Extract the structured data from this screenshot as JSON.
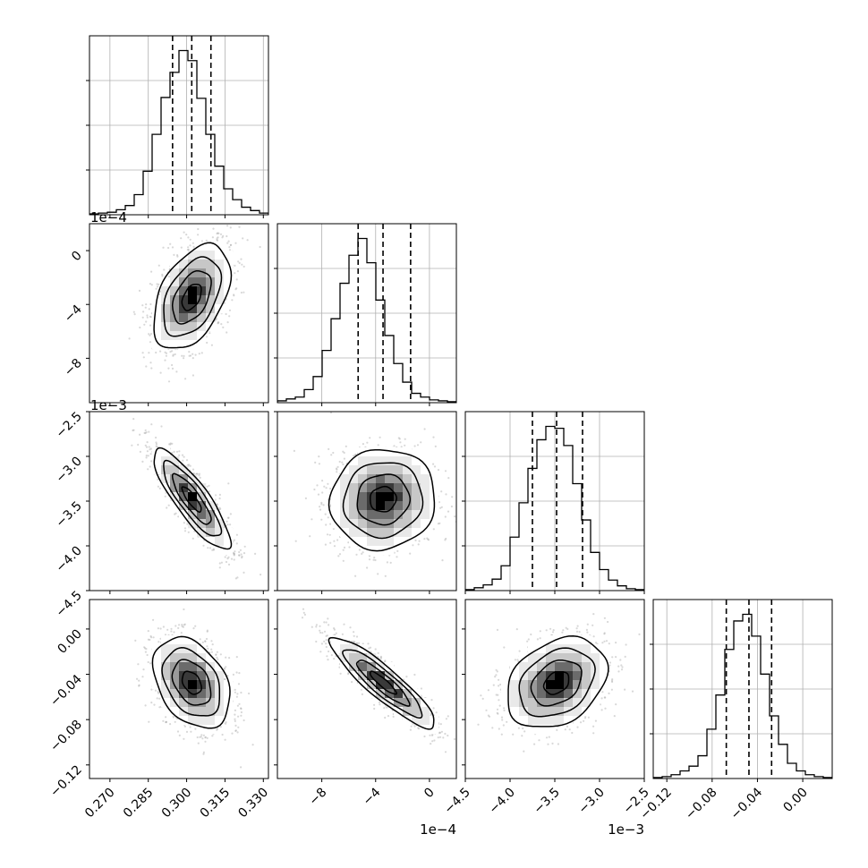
{
  "chart_data": {
    "type": "corner",
    "colors": {
      "line": "#000000",
      "grid": "#b0b0b0",
      "scatter": "#a9a9a9",
      "density": [
        "#ffffff",
        "#e9e9e9",
        "#c7c7c7",
        "#9a9a9a",
        "#6b6b6b",
        "#3a3a3a",
        "#000000"
      ]
    },
    "params": [
      {
        "range": [
          0.262,
          0.332
        ],
        "ticks": [
          0.27,
          0.285,
          0.3,
          0.315,
          0.33
        ],
        "tick_labels": [
          "0.270",
          "0.285",
          "0.300",
          "0.315",
          "0.330"
        ],
        "offset_label": "",
        "quantiles": [
          0.2945,
          0.302,
          0.3095
        ],
        "hist": [
          1,
          2,
          3,
          6,
          11,
          24,
          52,
          96,
          140,
          170,
          196,
          184,
          139,
          96,
          58,
          31,
          18,
          9,
          5,
          2
        ]
      },
      {
        "range": [
          -11.3,
          2.0
        ],
        "ticks": [
          -8,
          -4,
          0
        ],
        "tick_labels": [
          "−8",
          "−4",
          "0"
        ],
        "offset_label": "1e−4",
        "quantiles": [
          -5.3,
          -3.45,
          -1.4
        ],
        "hist": [
          2,
          4,
          6,
          14,
          28,
          56,
          90,
          128,
          158,
          176,
          150,
          110,
          72,
          42,
          22,
          10,
          6,
          3,
          2,
          1
        ]
      },
      {
        "range": [
          -4.5,
          -2.5
        ],
        "ticks": [
          -4.5,
          -4.0,
          -3.5,
          -3.0,
          -2.5
        ],
        "tick_labels": [
          "−4.5",
          "−4.0",
          "−3.5",
          "−3.0",
          "−2.5"
        ],
        "offset_label": "1e−3",
        "quantiles": [
          -3.75,
          -3.48,
          -3.19
        ],
        "hist": [
          1,
          3,
          6,
          12,
          26,
          56,
          92,
          128,
          158,
          172,
          170,
          152,
          112,
          74,
          40,
          22,
          11,
          5,
          2,
          1
        ]
      },
      {
        "range": [
          -0.132,
          0.026
        ],
        "ticks": [
          -0.12,
          -0.08,
          -0.04,
          0.0
        ],
        "tick_labels": [
          "−0.12",
          "−0.08",
          "−0.04",
          "0.00"
        ],
        "offset_label": "",
        "quantiles": [
          -0.0675,
          -0.0475,
          -0.0275
        ],
        "hist": [
          1,
          2,
          4,
          8,
          13,
          24,
          52,
          88,
          136,
          166,
          173,
          150,
          110,
          66,
          36,
          16,
          8,
          4,
          2,
          1
        ]
      }
    ],
    "correlations": {
      "1-0": 0.45,
      "2-0": -0.85,
      "2-1": 0.05,
      "3-0": -0.35,
      "3-1": -0.9,
      "3-2": 0.3
    }
  }
}
